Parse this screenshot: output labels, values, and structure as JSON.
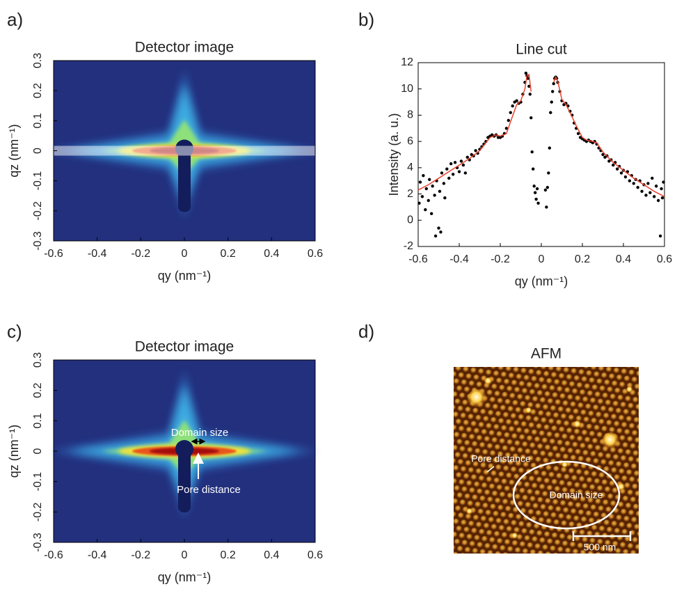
{
  "chart_data": [
    {
      "type": "heatmap",
      "label": "a)",
      "title": "Detector image",
      "xlabel": "qy (nm⁻¹)",
      "ylabel": "qz (nm⁻¹)",
      "xlim": [
        -0.6,
        0.6
      ],
      "ylim": [
        -0.3,
        0.3
      ],
      "xticks": [
        -0.6,
        -0.4,
        -0.2,
        0,
        0.2,
        0.4,
        0.6
      ],
      "yticks": [
        -0.3,
        -0.2,
        -0.1,
        0,
        0.1,
        0.2,
        0.3
      ],
      "cut_band": true
    },
    {
      "type": "scatter",
      "label": "b)",
      "title": "Line cut",
      "xlabel": "qy (nm⁻¹)",
      "ylabel": "Intensity (a. u.)",
      "xlim": [
        -0.6,
        0.6
      ],
      "ylim": [
        -2,
        12
      ],
      "xticks": [
        -0.6,
        -0.4,
        -0.2,
        0,
        0.2,
        0.4,
        0.6
      ],
      "yticks": [
        -2,
        0,
        2,
        4,
        6,
        8,
        10,
        12
      ],
      "series": [
        {
          "color": "#000000",
          "style": "dots",
          "x": [
            -0.595,
            -0.59,
            -0.58,
            -0.575,
            -0.565,
            -0.56,
            -0.55,
            -0.545,
            -0.535,
            -0.53,
            -0.52,
            -0.515,
            -0.51,
            -0.5,
            -0.495,
            -0.49,
            -0.485,
            -0.475,
            -0.47,
            -0.46,
            -0.45,
            -0.44,
            -0.43,
            -0.42,
            -0.41,
            -0.4,
            -0.39,
            -0.38,
            -0.37,
            -0.36,
            -0.35,
            -0.34,
            -0.33,
            -0.32,
            -0.31,
            -0.3,
            -0.29,
            -0.28,
            -0.27,
            -0.26,
            -0.25,
            -0.24,
            -0.23,
            -0.22,
            -0.21,
            -0.2,
            -0.19,
            -0.18,
            -0.17,
            -0.16,
            -0.15,
            -0.14,
            -0.13,
            -0.12,
            -0.11,
            -0.1,
            -0.09,
            -0.08,
            -0.075,
            -0.07,
            -0.065,
            -0.06,
            -0.055,
            -0.05,
            -0.045,
            -0.04,
            -0.035,
            -0.03,
            -0.025,
            -0.02,
            -0.015,
            0.02,
            0.025,
            0.03,
            0.035,
            0.04,
            0.045,
            0.05,
            0.055,
            0.06,
            0.065,
            0.07,
            0.075,
            0.08,
            0.09,
            0.1,
            0.11,
            0.12,
            0.13,
            0.14,
            0.15,
            0.16,
            0.17,
            0.18,
            0.19,
            0.2,
            0.21,
            0.22,
            0.23,
            0.24,
            0.25,
            0.26,
            0.27,
            0.28,
            0.29,
            0.3,
            0.31,
            0.32,
            0.33,
            0.34,
            0.35,
            0.36,
            0.37,
            0.38,
            0.39,
            0.4,
            0.41,
            0.42,
            0.43,
            0.44,
            0.45,
            0.46,
            0.47,
            0.48,
            0.49,
            0.5,
            0.51,
            0.52,
            0.53,
            0.54,
            0.55,
            0.56,
            0.57,
            0.58,
            0.585,
            0.59,
            0.595
          ],
          "values": [
            1.3,
            2.9,
            1.8,
            3.4,
            0.8,
            2.4,
            1.5,
            3.1,
            0.5,
            2.6,
            1.9,
            -1.2,
            3.0,
            -0.6,
            2.2,
            -0.9,
            3.6,
            2.8,
            1.7,
            3.9,
            3.2,
            4.3,
            3.5,
            4.4,
            4.0,
            3.7,
            4.5,
            4.2,
            3.6,
            4.8,
            4.6,
            5.0,
            4.9,
            5.3,
            5.1,
            5.4,
            5.6,
            5.8,
            6.0,
            6.3,
            6.4,
            6.5,
            6.4,
            6.5,
            6.3,
            6.3,
            6.4,
            6.6,
            7.0,
            7.6,
            8.2,
            8.7,
            9.0,
            9.1,
            8.9,
            9.0,
            9.6,
            10.5,
            11.2,
            11.0,
            10.8,
            10.2,
            9.6,
            7.8,
            5.2,
            3.9,
            2.6,
            2.1,
            1.6,
            2.4,
            1.3,
            2.3,
            1.0,
            2.5,
            3.6,
            5.5,
            8.2,
            9.0,
            9.8,
            10.4,
            10.8,
            10.9,
            10.8,
            10.5,
            9.8,
            9.1,
            8.8,
            8.9,
            8.7,
            8.3,
            8.0,
            7.4,
            7.0,
            6.6,
            6.3,
            6.2,
            6.1,
            6.0,
            6.1,
            6.0,
            5.9,
            6.0,
            5.8,
            5.5,
            5.3,
            5.0,
            4.8,
            4.9,
            4.5,
            4.6,
            4.2,
            4.4,
            3.9,
            4.1,
            3.6,
            3.8,
            3.3,
            3.7,
            3.0,
            3.4,
            2.8,
            3.1,
            2.5,
            3.0,
            2.2,
            2.7,
            1.9,
            2.8,
            2.1,
            3.2,
            1.8,
            2.6,
            1.5,
            -1.2,
            2.4,
            1.7,
            2.9
          ]
        },
        {
          "color": "#e8432e",
          "style": "line",
          "x": [
            -0.6,
            -0.55,
            -0.5,
            -0.45,
            -0.4,
            -0.35,
            -0.3,
            -0.25,
            -0.22,
            -0.2,
            -0.17,
            -0.15,
            -0.12,
            -0.1,
            -0.08,
            -0.07,
            -0.06,
            -0.05,
            0,
            0.06,
            0.07,
            0.08,
            0.1,
            0.12,
            0.14,
            0.17,
            0.2,
            0.22,
            0.25,
            0.27,
            0.3,
            0.35,
            0.4,
            0.45,
            0.5,
            0.55,
            0.6
          ],
          "values": [
            2.3,
            2.7,
            3.2,
            3.7,
            4.2,
            4.7,
            5.3,
            6.3,
            6.5,
            6.4,
            6.6,
            7.5,
            8.8,
            9.1,
            10.0,
            11.0,
            11.1,
            9.8,
            null,
            10.5,
            10.9,
            10.6,
            9.2,
            8.8,
            8.2,
            7.2,
            6.3,
            6.1,
            6.0,
            5.9,
            5.2,
            4.4,
            3.8,
            3.2,
            2.7,
            2.2,
            1.8
          ]
        }
      ]
    },
    {
      "type": "heatmap",
      "label": "c)",
      "title": "Detector image",
      "xlabel": "qy (nm⁻¹)",
      "ylabel": "qz (nm⁻¹)",
      "xlim": [
        -0.6,
        0.6
      ],
      "ylim": [
        -0.3,
        0.3
      ],
      "xticks": [
        -0.6,
        -0.4,
        -0.2,
        0,
        0.2,
        0.4,
        0.6
      ],
      "yticks": [
        -0.3,
        -0.2,
        -0.1,
        0,
        0.1,
        0.2,
        0.3
      ],
      "cut_band": false,
      "annotations": [
        "Domain size",
        "Pore distance"
      ]
    },
    {
      "type": "image",
      "label": "d)",
      "title": "AFM",
      "annotations": [
        "Pore distance",
        "Domain size"
      ],
      "scale_bar": "500 nm"
    }
  ]
}
